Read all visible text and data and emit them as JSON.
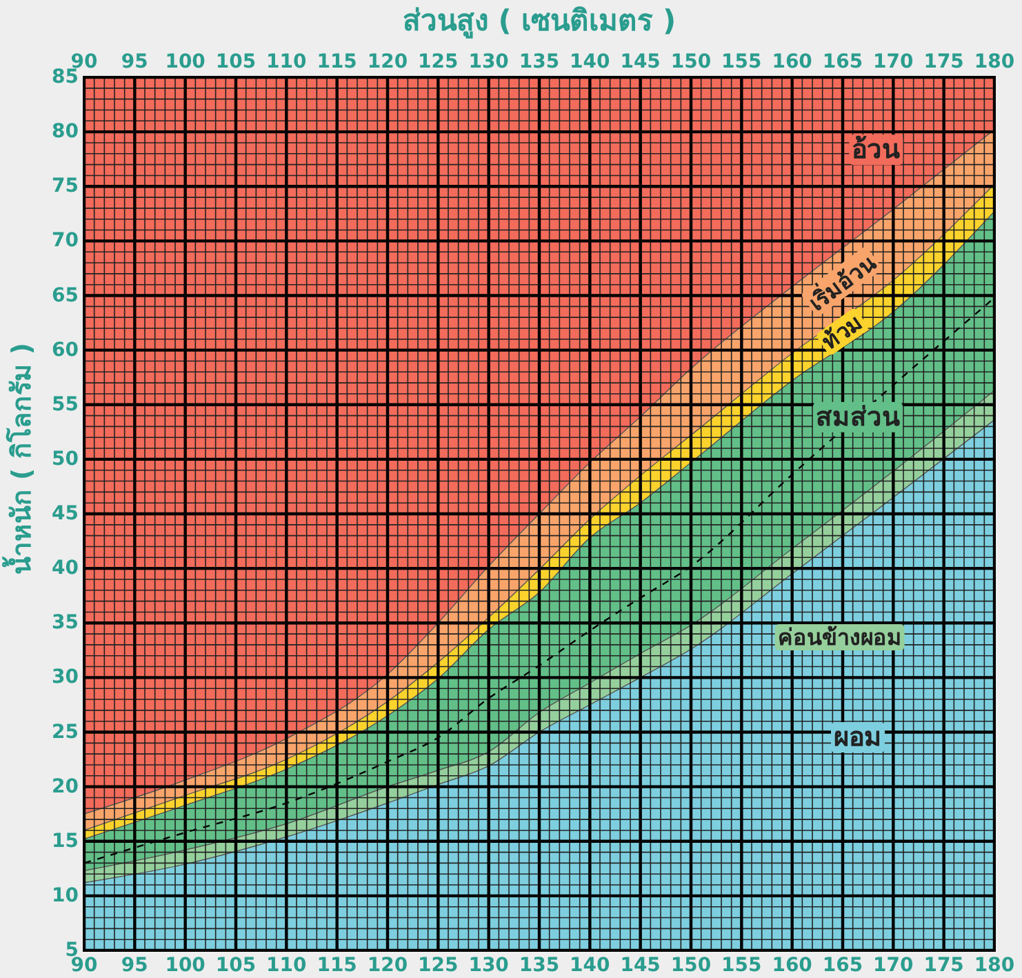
{
  "chart_data": {
    "type": "area",
    "x2label": "ส่วนสูง ( เซนติเมตร )",
    "ylabel": "น้ำหนัก ( กิโลกรัม )",
    "x": [
      90,
      100,
      110,
      120,
      125,
      130,
      135,
      140,
      145,
      150,
      160,
      170,
      180
    ],
    "xlim": [
      90,
      180
    ],
    "xticks": [
      90,
      95,
      100,
      105,
      110,
      115,
      120,
      125,
      130,
      135,
      140,
      145,
      150,
      155,
      160,
      165,
      170,
      175,
      180
    ],
    "x2lim": [
      90,
      180
    ],
    "x2ticks": [
      90,
      95,
      100,
      105,
      110,
      115,
      120,
      125,
      130,
      135,
      140,
      145,
      150,
      155,
      160,
      165,
      170,
      175,
      180
    ],
    "ylim": [
      5,
      85
    ],
    "yticks": [
      5,
      10,
      15,
      20,
      25,
      30,
      35,
      40,
      45,
      50,
      55,
      60,
      65,
      70,
      75,
      80,
      85
    ],
    "grid": true,
    "series": [
      {
        "name": "อ้วน",
        "color": "#f26b5b",
        "values": [
          85,
          85,
          85,
          85,
          85,
          85,
          85,
          85,
          85,
          85,
          85,
          85,
          85
        ]
      },
      {
        "name": "เริ่มอ้วน",
        "color": "#f9a46b",
        "values": [
          17.5,
          20.6,
          24.4,
          30.3,
          35.0,
          40.2,
          45.0,
          49.7,
          53.9,
          58.3,
          65.8,
          72.9,
          80.2
        ]
      },
      {
        "name": "ท้วม",
        "color": "#fcd22c",
        "values": [
          16.0,
          19.2,
          22.5,
          27.8,
          31.4,
          35.5,
          39.9,
          44.5,
          48.5,
          52.2,
          59.7,
          66.4,
          75.2
        ]
      },
      {
        "name": "สมส่วน",
        "color": "#63bf88",
        "values": [
          15.2,
          18.3,
          21.6,
          26.5,
          29.9,
          34.4,
          37.8,
          42.8,
          46.0,
          49.7,
          57.2,
          63.5,
          72.7
        ]
      },
      {
        "name": "ค่อนข้างผอม",
        "color": "#94cf9c",
        "values": [
          12.3,
          14.2,
          16.6,
          20.0,
          21.5,
          23.2,
          26.8,
          29.5,
          32.2,
          34.8,
          41.8,
          48.9,
          56.3
        ]
      },
      {
        "name": "ผอม",
        "color": "#7dcfdf",
        "values": [
          11.2,
          12.9,
          15.4,
          18.5,
          20.2,
          21.9,
          25.0,
          27.5,
          30.0,
          32.6,
          39.5,
          46.5,
          53.6
        ]
      },
      {
        "type": "line",
        "color": "#000000",
        "line_style": "dashed",
        "values": [
          13.0,
          15.8,
          18.5,
          22.3,
          24.5,
          28.1,
          31.1,
          34.3,
          37.3,
          40.2,
          48.6,
          56.8,
          64.8
        ]
      }
    ]
  }
}
